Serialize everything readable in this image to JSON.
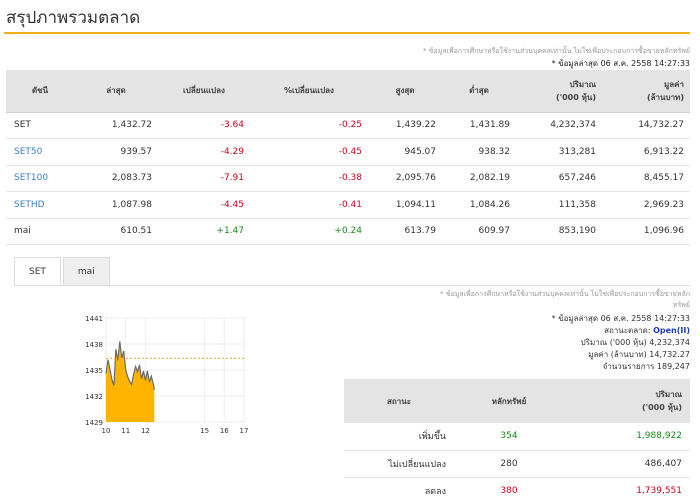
{
  "page": {
    "title": "สรุปภาพรวมตลาด",
    "notice": "* ข้อมูลเพื่อการศึกษาหรือใช้งานส่วนบุคคลเท่านั้น ไม่ใช่เพื่อประกอบการซื้อขายหลักทรัพย์",
    "updated_label": "* ข้อมูลล่าสุด",
    "updated_value": "06 ส.ค. 2558 14:27:33"
  },
  "market_table": {
    "headers": {
      "symbol": "ดัชนี",
      "last": "ล่าสุด",
      "change": "เปลี่ยนแปลง",
      "pct_change": "%เปลี่ยนแปลง",
      "high": "สูงสุด",
      "low": "ต่ำสุด",
      "volume_l1": "ปริมาณ",
      "volume_l2": "('000 หุ้น)",
      "value_l1": "มูลค่า",
      "value_l2": "(ล้านบาท)"
    },
    "rows": [
      {
        "symbol": "SET",
        "is_link": false,
        "last": "1,432.72",
        "change": "-3.64",
        "pct": "-0.25",
        "high": "1,439.22",
        "low": "1,431.89",
        "volume": "4,232,374",
        "value": "14,732.27",
        "dir": "neg"
      },
      {
        "symbol": "SET50",
        "is_link": true,
        "last": "939.57",
        "change": "-4.29",
        "pct": "-0.45",
        "high": "945.07",
        "low": "938.32",
        "volume": "313,281",
        "value": "6,913.22",
        "dir": "neg"
      },
      {
        "symbol": "SET100",
        "is_link": true,
        "last": "2,083.73",
        "change": "-7.91",
        "pct": "-0.38",
        "high": "2,095.76",
        "low": "2,082.19",
        "volume": "657,246",
        "value": "8,455.17",
        "dir": "neg"
      },
      {
        "symbol": "SETHD",
        "is_link": true,
        "last": "1,087.98",
        "change": "-4.45",
        "pct": "-0.41",
        "high": "1,094.11",
        "low": "1,084.26",
        "volume": "111,358",
        "value": "2,969.23",
        "dir": "neg"
      },
      {
        "symbol": "mai",
        "is_link": false,
        "last": "610.51",
        "change": "+1.47",
        "pct": "+0.24",
        "high": "613.79",
        "low": "609.97",
        "volume": "853,190",
        "value": "1,096.96",
        "dir": "pos"
      }
    ]
  },
  "tabs": [
    {
      "label": "SET",
      "active": true
    },
    {
      "label": "mai",
      "active": false
    }
  ],
  "panel": {
    "notice_line1": "* ข้อมูลเพื่อการศึกษาหรือใช้งานส่วนบุคคลเท่านั้น ไม่ใช่เพื่อประกอบการซื้อขายหลัก",
    "notice_line2": "ทรัพย์",
    "updated_label": "* ข้อมูลล่าสุด",
    "updated_value": "06 ส.ค. 2558 14:27:33",
    "status_label": "สถานะตลาด:",
    "status_value": "Open(II)",
    "volume_label": "ปริมาณ ('000 หุ้น)",
    "volume_value": "4,232,374",
    "value_label": "มูลค่า (ล้านบาท)",
    "value_value": "14,732.27",
    "trades_label": "จำนวนรายการ",
    "trades_value": "189,247"
  },
  "summary_table": {
    "headers": {
      "status": "สถานะ",
      "securities": "หลักทรัพย์",
      "volume_l1": "ปริมาณ",
      "volume_l2": "('000 หุ้น)"
    },
    "rows": [
      {
        "status": "เพิ่มขึ้น",
        "securities": "354",
        "volume": "1,988,922",
        "color": "#1a8a1a"
      },
      {
        "status": "ไม่เปลี่ยนแปลง",
        "securities": "280",
        "volume": "486,407",
        "color": "#333333"
      },
      {
        "status": "ลดลง",
        "securities": "380",
        "volume": "1,739,551",
        "color": "#d0021b"
      }
    ]
  },
  "chart_data": {
    "type": "area",
    "x_ticks": [
      "10",
      "11",
      "12",
      "15",
      "16",
      "17"
    ],
    "y_ticks": [
      "1441",
      "1438",
      "1435",
      "1432",
      "1429"
    ],
    "ylim": [
      1429,
      1441
    ],
    "xlim": [
      10,
      17
    ],
    "reference_value": 1436.36,
    "fill_color": "#ffb400",
    "line_color": "#6b6b6b",
    "x": [
      10.0,
      10.1,
      10.2,
      10.3,
      10.4,
      10.5,
      10.6,
      10.7,
      10.8,
      10.9,
      11.0,
      11.1,
      11.2,
      11.3,
      11.4,
      11.5,
      11.6,
      11.7,
      11.8,
      11.9,
      12.0,
      12.1,
      12.2,
      12.3,
      12.4,
      12.45
    ],
    "values": [
      1434.6,
      1436.2,
      1435.1,
      1433.9,
      1433.2,
      1437.4,
      1436.1,
      1438.3,
      1436.4,
      1437.2,
      1435.0,
      1434.2,
      1433.7,
      1433.3,
      1434.5,
      1435.4,
      1434.8,
      1435.6,
      1434.0,
      1434.9,
      1433.8,
      1434.9,
      1433.6,
      1434.3,
      1433.4,
      1432.7
    ]
  }
}
